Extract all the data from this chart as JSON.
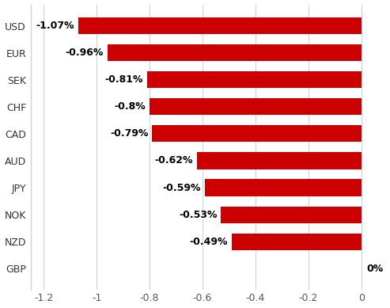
{
  "categories": [
    "USD",
    "EUR",
    "SEK",
    "CHF",
    "CAD",
    "AUD",
    "JPY",
    "NOK",
    "NZD",
    "GBP"
  ],
  "values": [
    -1.07,
    -0.96,
    -0.81,
    -0.8,
    -0.79,
    -0.62,
    -0.59,
    -0.53,
    -0.49,
    0.0
  ],
  "labels": [
    "-1.07%",
    "-0.96%",
    "-0.81%",
    "-0.8%",
    "-0.79%",
    "-0.62%",
    "-0.59%",
    "-0.53%",
    "-0.49%",
    "0%"
  ],
  "bar_color": "#cc0000",
  "background_color": "#ffffff",
  "xlim": [
    -1.25,
    0.08
  ],
  "xticks": [
    -1.2,
    -1.0,
    -0.8,
    -0.6,
    -0.4,
    -0.2,
    0.0
  ],
  "grid_color": "#c8d4e0",
  "label_fontsize": 9,
  "ytick_fontsize": 9,
  "xtick_fontsize": 9,
  "bar_height": 0.62
}
